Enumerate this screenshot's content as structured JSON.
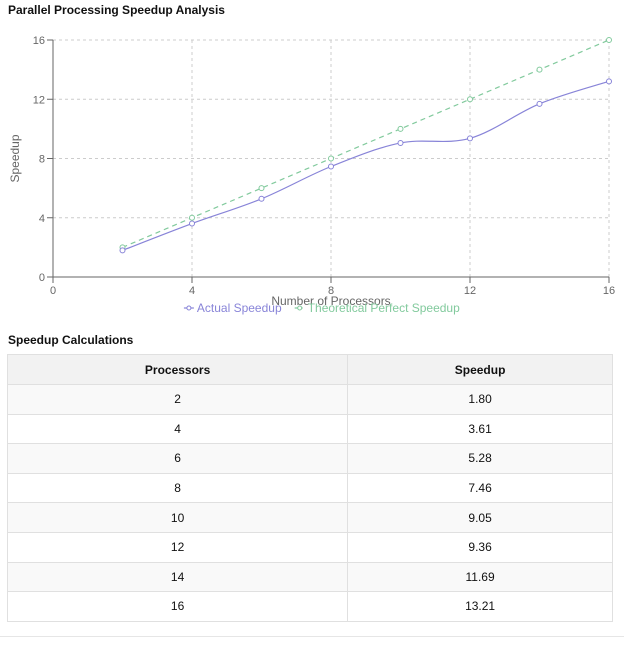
{
  "page": {
    "title": "Parallel Processing Speedup Analysis",
    "table_title": "Speedup Calculations"
  },
  "chart_data": {
    "type": "line",
    "title": "Parallel Processing Speedup Analysis",
    "xlabel": "Number of Processors",
    "ylabel": "Speedup",
    "xlim": [
      0,
      16
    ],
    "ylim": [
      0,
      16
    ],
    "xticks": [
      0,
      4,
      8,
      12,
      16
    ],
    "yticks": [
      0,
      4,
      8,
      12,
      16
    ],
    "grid": true,
    "legend_position": "bottom",
    "series": [
      {
        "name": "Actual Speedup",
        "color": "#8884d8",
        "style": "solid",
        "x": [
          2,
          4,
          6,
          8,
          10,
          12,
          14,
          16
        ],
        "y": [
          1.8,
          3.61,
          5.28,
          7.46,
          9.05,
          9.36,
          11.69,
          13.21
        ]
      },
      {
        "name": "Theoretical Perfect Speedup",
        "color": "#82ca9d",
        "style": "dashed",
        "x": [
          2,
          4,
          6,
          8,
          10,
          12,
          14,
          16
        ],
        "y": [
          2,
          4,
          6,
          8,
          10,
          12,
          14,
          16
        ]
      }
    ]
  },
  "table": {
    "headers": [
      "Processors",
      "Speedup"
    ],
    "rows": [
      [
        "2",
        "1.80"
      ],
      [
        "4",
        "3.61"
      ],
      [
        "6",
        "5.28"
      ],
      [
        "8",
        "7.46"
      ],
      [
        "10",
        "9.05"
      ],
      [
        "12",
        "9.36"
      ],
      [
        "14",
        "11.69"
      ],
      [
        "16",
        "13.21"
      ]
    ]
  }
}
